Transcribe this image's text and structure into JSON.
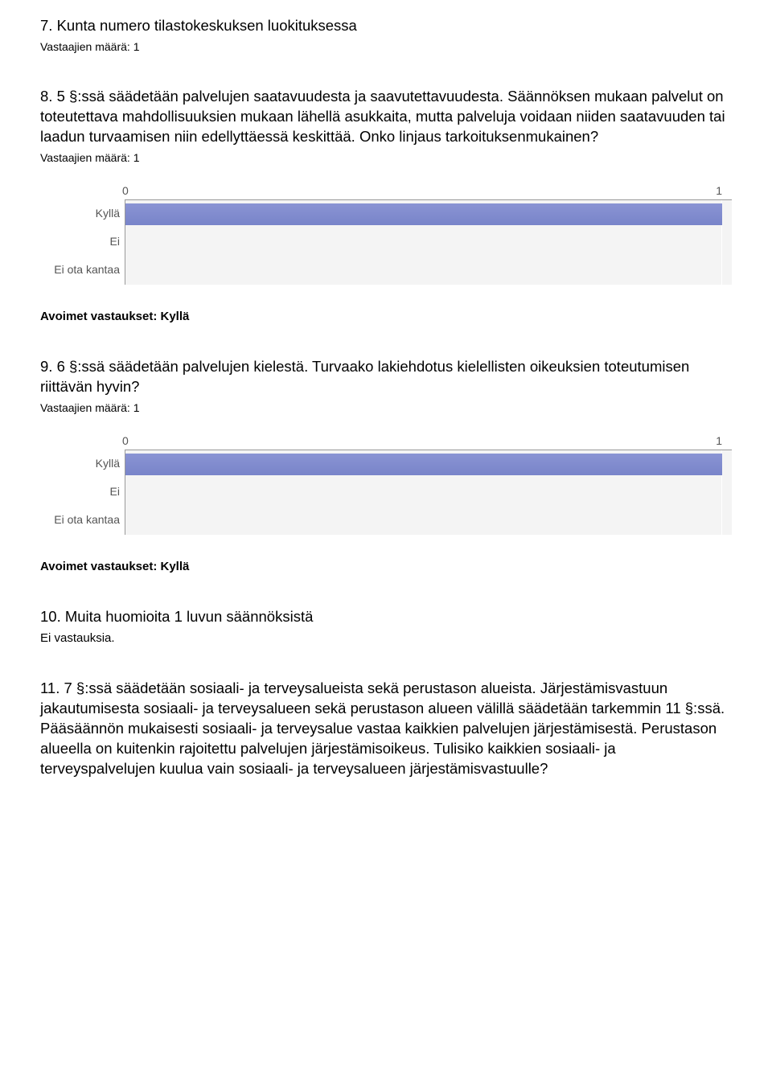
{
  "q7": {
    "title": "7. Kunta numero tilastokeskuksen luokituksessa",
    "respondents": "Vastaajien määrä: 1"
  },
  "q8": {
    "title": "8. 5 §:ssä säädetään palvelujen saatavuudesta ja saavutettavuudesta. Säännöksen mukaan palvelut on toteutettava mahdollisuuksien mukaan lähellä asukkaita, mutta palveluja voidaan niiden saatavuuden tai laadun turvaamisen niin edellyttäessä keskittää. Onko linjaus tarkoituksenmukainen?",
    "respondents": "Vastaajien määrä: 1",
    "open_label": "Avoimet vastaukset: Kyllä",
    "chart": {
      "type": "bar",
      "categories": [
        "Kyllä",
        "Ei",
        "Ei ota kantaa"
      ],
      "values": [
        1,
        0,
        0
      ],
      "xlim": [
        0,
        1
      ],
      "ticks": [
        "0",
        "1"
      ],
      "bar_color": "#7f8bcf",
      "background_color": "#f4f4f4",
      "axis_color": "#999999",
      "label_color": "#555555"
    }
  },
  "q9": {
    "title": "9. 6 §:ssä säädetään palvelujen kielestä. Turvaako lakiehdotus kielellisten oikeuksien toteutumisen riittävän hyvin?",
    "respondents": "Vastaajien määrä: 1",
    "open_label": "Avoimet vastaukset: Kyllä",
    "chart": {
      "type": "bar",
      "categories": [
        "Kyllä",
        "Ei",
        "Ei ota kantaa"
      ],
      "values": [
        1,
        0,
        0
      ],
      "xlim": [
        0,
        1
      ],
      "ticks": [
        "0",
        "1"
      ],
      "bar_color": "#7f8bcf",
      "background_color": "#f4f4f4",
      "axis_color": "#999999",
      "label_color": "#555555"
    }
  },
  "q10": {
    "title": "10. Muita huomioita 1 luvun säännöksistä",
    "no_answers": "Ei vastauksia."
  },
  "q11": {
    "title": "11. 7 §:ssä säädetään sosiaali- ja terveysalueista sekä perustason alueista. Järjestämisvastuun jakautumisesta sosiaali- ja terveysalueen sekä perustason alueen välillä säädetään tarkemmin 11 §:ssä. Pääsäännön mukaisesti sosiaali- ja terveysalue vastaa kaikkien palvelujen järjestämisestä. Perustason alueella on kuitenkin rajoitettu palvelujen järjestämisoikeus. Tulisiko kaikkien sosiaali- ja terveyspalvelujen kuulua vain sosiaali- ja terveysalueen järjestämisvastuulle?"
  }
}
